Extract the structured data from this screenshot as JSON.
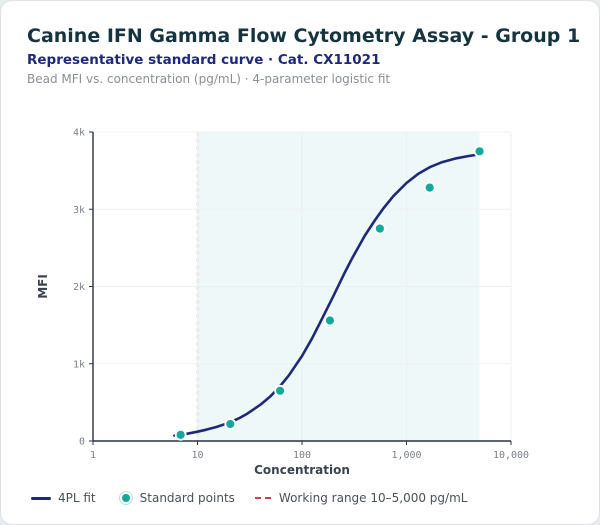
{
  "title": "Canine IFN Gamma Flow Cytometry Assay - Group 1",
  "subtitle": "Representative standard curve · Cat. CX11021",
  "description": "Bead MFI vs. concentration (pg/mL) · 4-parameter logistic fit",
  "colors": {
    "curve": "#1e2a78",
    "points": "#13a89e",
    "working_range_line": "#d33a4a",
    "working_range_fill": "#eef8f8"
  },
  "legend": {
    "fit": "4PL fit",
    "points": "Standard points",
    "range": "Working range 10–5,000 pg/mL"
  },
  "chart_data": {
    "type": "scatter",
    "x_scale": "log",
    "xlabel": "Concentration",
    "ylabel": "MFI",
    "xlim": [
      1,
      10000
    ],
    "ylim": [
      0,
      4000
    ],
    "x_ticks": [
      1,
      10,
      100,
      1000,
      10000
    ],
    "x_tick_labels": [
      "1",
      "10",
      "100",
      "1,000",
      "10,000"
    ],
    "y_ticks": [
      0,
      1000,
      2000,
      3000,
      4000
    ],
    "y_tick_labels": [
      "0",
      "1k",
      "2k",
      "3k",
      "4k"
    ],
    "grid": true,
    "working_range": [
      10,
      5000
    ],
    "series": [
      {
        "name": "Standard points",
        "kind": "points",
        "x": [
          6.9,
          20.6,
          61.7,
          185,
          556,
          1667,
          5000
        ],
        "y": [
          80,
          220,
          650,
          1560,
          2750,
          3280,
          3750
        ]
      },
      {
        "name": "4PL fit",
        "kind": "line",
        "x": [
          6,
          8,
          10,
          12,
          15,
          20,
          25,
          30,
          40,
          50,
          60,
          75,
          100,
          125,
          150,
          200,
          250,
          300,
          400,
          500,
          600,
          750,
          1000,
          1300,
          1700,
          2200,
          3000,
          4000,
          5000
        ],
        "y": [
          70,
          95,
          120,
          145,
          180,
          235,
          295,
          355,
          470,
          580,
          690,
          850,
          1100,
          1330,
          1540,
          1880,
          2150,
          2360,
          2660,
          2860,
          3010,
          3170,
          3340,
          3460,
          3550,
          3610,
          3660,
          3690,
          3710
        ]
      }
    ]
  }
}
